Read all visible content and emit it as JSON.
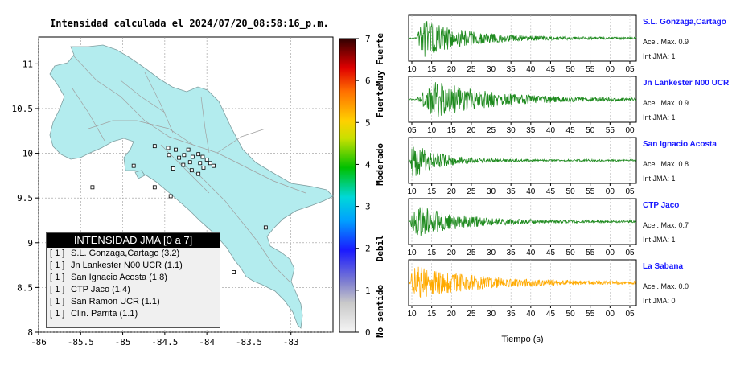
{
  "title": "Intensidad calculada el 2024/07/20_08:58:16_p.m.",
  "map": {
    "x_ticks": [
      "-86",
      "-85.5",
      "-85",
      "-84.5",
      "-84",
      "-83.5",
      "-83"
    ],
    "y_ticks": [
      "11",
      "10.5",
      "10",
      "9.5",
      "9",
      "8.5",
      "8"
    ],
    "xlim": [
      -86,
      -82.5
    ],
    "ylim": [
      8,
      11.3
    ],
    "land_color": "#b3ecee",
    "grid": true
  },
  "colorbar": {
    "ticks": [
      "0",
      "1",
      "2",
      "3",
      "4",
      "5",
      "6",
      "7"
    ],
    "labels": [
      "No sentido",
      "Debil",
      "Moderado",
      "Fuerte",
      "Muy Fuerte"
    ],
    "range": [
      0,
      7
    ]
  },
  "legend": {
    "header": "INTENSIDAD JMA [0 a 7]",
    "rows": [
      {
        "level": "[ 1 ]",
        "text": "S.L. Gonzaga,Cartago (3.2)"
      },
      {
        "level": "[ 1 ]",
        "text": "Jn Lankester N00 UCR (1.1)"
      },
      {
        "level": "[ 1 ]",
        "text": "San Ignacio Acosta (1.8)"
      },
      {
        "level": "[ 1 ]",
        "text": "CTP Jaco (1.4)"
      },
      {
        "level": "[ 1 ]",
        "text": "San Ramon UCR (1.1)"
      },
      {
        "level": "[ 1 ]",
        "text": "Clin. Parrita (1.1)"
      }
    ]
  },
  "stations_markers": [
    {
      "lon": -84.62,
      "lat": 10.08
    },
    {
      "lon": -84.46,
      "lat": 10.06
    },
    {
      "lon": -84.37,
      "lat": 10.04
    },
    {
      "lon": -84.45,
      "lat": 9.98
    },
    {
      "lon": -84.33,
      "lat": 9.95
    },
    {
      "lon": -84.27,
      "lat": 9.98
    },
    {
      "lon": -84.17,
      "lat": 9.96
    },
    {
      "lon": -84.1,
      "lat": 9.99
    },
    {
      "lon": -84.05,
      "lat": 9.96
    },
    {
      "lon": -84.0,
      "lat": 9.93
    },
    {
      "lon": -84.08,
      "lat": 9.89
    },
    {
      "lon": -83.96,
      "lat": 9.89
    },
    {
      "lon": -83.92,
      "lat": 9.86
    },
    {
      "lon": -84.04,
      "lat": 9.84
    },
    {
      "lon": -84.2,
      "lat": 9.9
    },
    {
      "lon": -84.28,
      "lat": 9.87
    },
    {
      "lon": -84.18,
      "lat": 9.81
    },
    {
      "lon": -84.1,
      "lat": 9.77
    },
    {
      "lon": -84.4,
      "lat": 9.83
    },
    {
      "lon": -84.62,
      "lat": 9.62
    },
    {
      "lon": -84.87,
      "lat": 9.86
    },
    {
      "lon": -85.36,
      "lat": 9.62
    },
    {
      "lon": -84.43,
      "lat": 9.52
    },
    {
      "lon": -83.68,
      "lat": 8.67
    },
    {
      "lon": -83.3,
      "lat": 9.17
    },
    {
      "lon": -84.22,
      "lat": 10.04
    }
  ],
  "chart_data": [
    {
      "type": "line",
      "station": "S.L. Gonzaga,Cartago",
      "acel_label": "Acel. Max. 0.9",
      "int_label": "Int JMA: 1",
      "color": "#1e8a1e",
      "x_ticks": [
        "10",
        "15",
        "20",
        "25",
        "30",
        "35",
        "40",
        "45",
        "50",
        "55",
        "00",
        "05"
      ],
      "onset": 0.03,
      "peak": 0.07,
      "decay": 0.18,
      "amp": 1.0
    },
    {
      "type": "line",
      "station": "Jn Lankester N00 UCR",
      "acel_label": "Acel. Max. 0.9",
      "int_label": "Int JMA: 1",
      "color": "#1e8a1e",
      "x_ticks": [
        "05",
        "10",
        "15",
        "20",
        "25",
        "30",
        "35",
        "40",
        "45",
        "50",
        "55",
        "00"
      ],
      "onset": 0.03,
      "peak": 0.12,
      "decay": 0.25,
      "amp": 0.95
    },
    {
      "type": "line",
      "station": "San Ignacio Acosta",
      "acel_label": "Acel. Max. 0.8",
      "int_label": "Int JMA: 1",
      "color": "#1e8a1e",
      "x_ticks": [
        "10",
        "15",
        "20",
        "25",
        "30",
        "35",
        "40",
        "45",
        "50",
        "55",
        "00",
        "05"
      ],
      "onset": 0.005,
      "peak": 0.02,
      "decay": 0.12,
      "amp": 0.9
    },
    {
      "type": "line",
      "station": "CTP Jaco",
      "acel_label": "Acel. Max. 0.7",
      "int_label": "Int JMA: 1",
      "color": "#1e8a1e",
      "x_ticks": [
        "10",
        "15",
        "20",
        "25",
        "30",
        "35",
        "40",
        "45",
        "50",
        "55",
        "00",
        "05"
      ],
      "onset": 0.005,
      "peak": 0.03,
      "decay": 0.2,
      "amp": 0.85
    },
    {
      "type": "line",
      "station": "La Sabana",
      "acel_label": "Acel. Max. 0.0",
      "int_label": "Int JMA: 0",
      "color": "#ffaa00",
      "x_ticks": [
        "10",
        "15",
        "20",
        "25",
        "30",
        "35",
        "40",
        "45",
        "50",
        "55",
        "00",
        "05"
      ],
      "onset": 0.005,
      "peak": 0.02,
      "decay": 0.3,
      "amp": 0.85
    }
  ],
  "x_axis_label": "Tiempo (s)"
}
